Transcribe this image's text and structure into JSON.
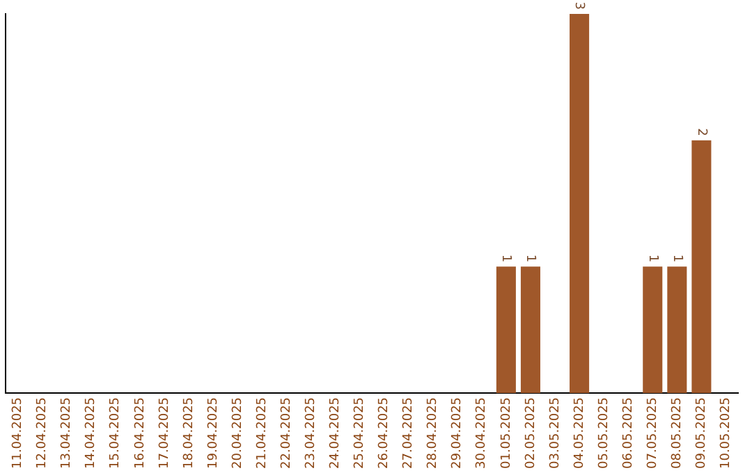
{
  "chart_data": {
    "type": "bar",
    "categories": [
      "11.04.2025",
      "12.04.2025",
      "13.04.2025",
      "14.04.2025",
      "15.04.2025",
      "16.04.2025",
      "17.04.2025",
      "18.04.2025",
      "19.04.2025",
      "20.04.2025",
      "21.04.2025",
      "22.04.2025",
      "23.04.2025",
      "24.04.2025",
      "25.04.2025",
      "26.04.2025",
      "27.04.2025",
      "28.04.2025",
      "29.04.2025",
      "30.04.2025",
      "01.05.2025",
      "02.05.2025",
      "03.05.2025",
      "04.05.2025",
      "05.05.2025",
      "06.05.2025",
      "07.05.2025",
      "08.05.2025",
      "09.05.2025",
      "10.05.2025"
    ],
    "values": [
      null,
      null,
      null,
      null,
      null,
      null,
      null,
      null,
      null,
      null,
      null,
      null,
      null,
      null,
      null,
      null,
      null,
      null,
      null,
      null,
      1,
      1,
      null,
      3,
      null,
      null,
      1,
      1,
      2,
      null
    ],
    "data_labels": true,
    "color": "#a0582a",
    "grid": false
  }
}
